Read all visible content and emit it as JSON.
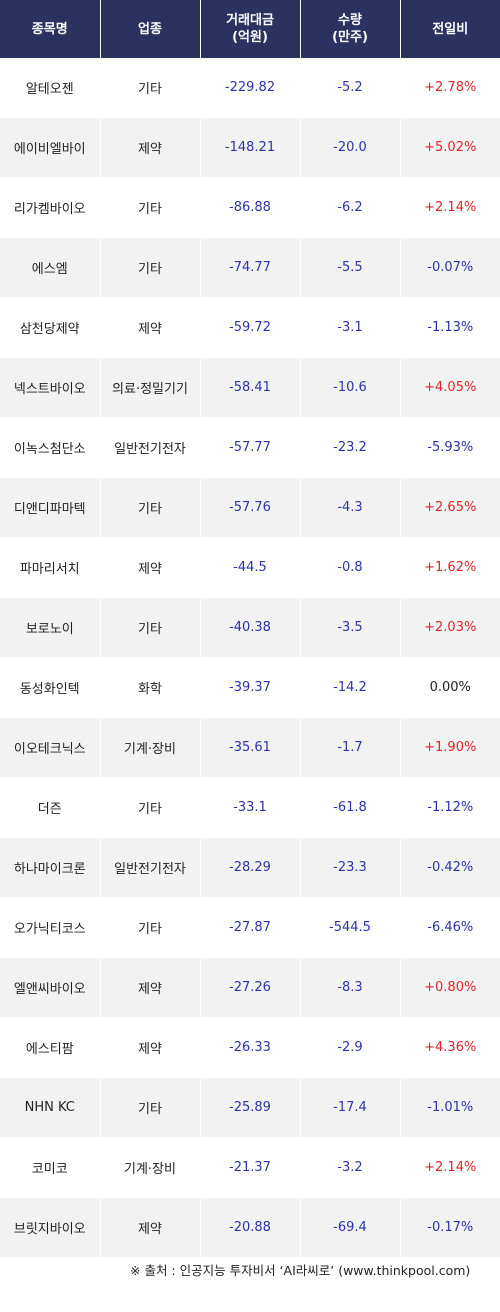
{
  "headers": {
    "name": "종목명",
    "sector": "업종",
    "amount_line1": "거래대금",
    "amount_line2": "(억원)",
    "volume_line1": "수량",
    "volume_line2": "(만주)",
    "change": "전일비"
  },
  "rows": [
    {
      "name": "알테오젠",
      "sector": "기타",
      "amount": "-229.82",
      "volume": "-5.2",
      "change": "+2.78%",
      "dir": "up"
    },
    {
      "name": "에이비엘바이",
      "sector": "제약",
      "amount": "-148.21",
      "volume": "-20.0",
      "change": "+5.02%",
      "dir": "up"
    },
    {
      "name": "리가켐바이오",
      "sector": "기타",
      "amount": "-86.88",
      "volume": "-6.2",
      "change": "+2.14%",
      "dir": "up"
    },
    {
      "name": "에스엠",
      "sector": "기타",
      "amount": "-74.77",
      "volume": "-5.5",
      "change": "-0.07%",
      "dir": "down"
    },
    {
      "name": "삼천당제약",
      "sector": "제약",
      "amount": "-59.72",
      "volume": "-3.1",
      "change": "-1.13%",
      "dir": "down"
    },
    {
      "name": "넥스트바이오",
      "sector": "의료·정밀기기",
      "amount": "-58.41",
      "volume": "-10.6",
      "change": "+4.05%",
      "dir": "up"
    },
    {
      "name": "이녹스첨단소",
      "sector": "일반전기전자",
      "amount": "-57.77",
      "volume": "-23.2",
      "change": "-5.93%",
      "dir": "down"
    },
    {
      "name": "디앤디파마텍",
      "sector": "기타",
      "amount": "-57.76",
      "volume": "-4.3",
      "change": "+2.65%",
      "dir": "up"
    },
    {
      "name": "파마리서치",
      "sector": "제약",
      "amount": "-44.5",
      "volume": "-0.8",
      "change": "+1.62%",
      "dir": "up"
    },
    {
      "name": "보로노이",
      "sector": "기타",
      "amount": "-40.38",
      "volume": "-3.5",
      "change": "+2.03%",
      "dir": "up"
    },
    {
      "name": "동성화인텍",
      "sector": "화학",
      "amount": "-39.37",
      "volume": "-14.2",
      "change": "0.00%",
      "dir": "flat"
    },
    {
      "name": "이오테크닉스",
      "sector": "기계·장비",
      "amount": "-35.61",
      "volume": "-1.7",
      "change": "+1.90%",
      "dir": "up"
    },
    {
      "name": "더즌",
      "sector": "기타",
      "amount": "-33.1",
      "volume": "-61.8",
      "change": "-1.12%",
      "dir": "down"
    },
    {
      "name": "하나마이크론",
      "sector": "일반전기전자",
      "amount": "-28.29",
      "volume": "-23.3",
      "change": "-0.42%",
      "dir": "down"
    },
    {
      "name": "오가닉티코스",
      "sector": "기타",
      "amount": "-27.87",
      "volume": "-544.5",
      "change": "-6.46%",
      "dir": "down"
    },
    {
      "name": "엘앤씨바이오",
      "sector": "제약",
      "amount": "-27.26",
      "volume": "-8.3",
      "change": "+0.80%",
      "dir": "up"
    },
    {
      "name": "에스티팜",
      "sector": "제약",
      "amount": "-26.33",
      "volume": "-2.9",
      "change": "+4.36%",
      "dir": "up"
    },
    {
      "name": "NHN KC",
      "sector": "기타",
      "amount": "-25.89",
      "volume": "-17.4",
      "change": "-1.01%",
      "dir": "down"
    },
    {
      "name": "코미코",
      "sector": "기계·장비",
      "amount": "-21.37",
      "volume": "-3.2",
      "change": "+2.14%",
      "dir": "up"
    },
    {
      "name": "브릿지바이오",
      "sector": "제약",
      "amount": "-20.88",
      "volume": "-69.4",
      "change": "-0.17%",
      "dir": "down"
    }
  ],
  "footer": "※ 출처 : 인공지능 투자비서 ‘AI라씨로’ (www.thinkpool.com)",
  "colors": {
    "header_bg": "#2b3260",
    "up": "#e0242b",
    "down": "#2b34a8",
    "stripe": "#f2f2f2"
  }
}
